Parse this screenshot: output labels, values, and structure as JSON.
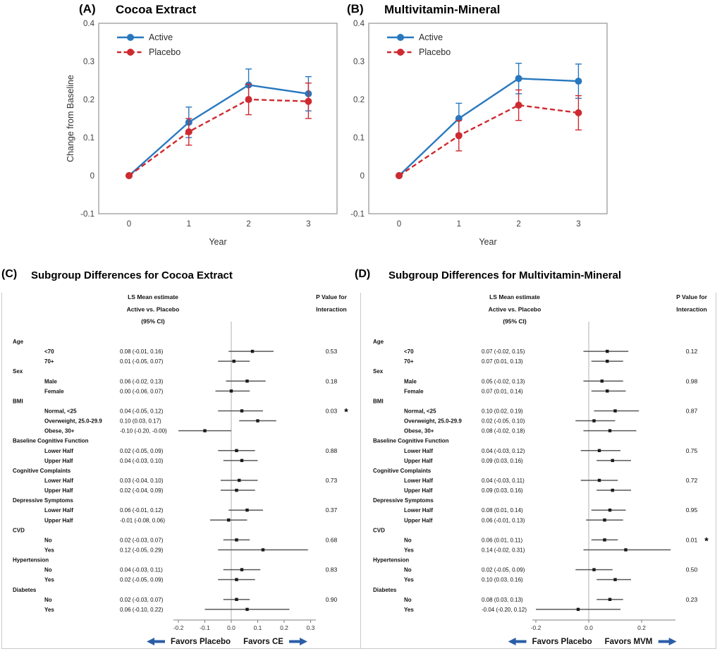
{
  "panels": {
    "A": {
      "tag": "(A)",
      "title": "Cocoa Extract"
    },
    "B": {
      "tag": "(B)",
      "title": "Multivitamin-Mineral"
    },
    "C": {
      "tag": "(C)",
      "title": "Subgroup Differences for Cocoa Extract"
    },
    "D": {
      "tag": "(D)",
      "title": "Subgroup Differences for Multivitamin-Mineral"
    }
  },
  "colors": {
    "active": "#2878BE",
    "placebo": "#CE2A30",
    "arrow": "#2B5DA7",
    "marker": "#1a1a1a",
    "ci_line": "#595959",
    "zero_line": "#C4C4C4",
    "axis": "#7F7F7F",
    "panel_border": "#9C9C9C",
    "tick_text": "#3f3f3f"
  },
  "chart_data": [
    {
      "type": "line",
      "panel": "A",
      "title": "Cocoa Extract",
      "xlabel": "Year",
      "ylabel": "Change from Baseline",
      "x": [
        0,
        1,
        2,
        3
      ],
      "xtick_labels": [
        "0",
        "1",
        "2",
        "3"
      ],
      "ylim": [
        -0.1,
        0.4
      ],
      "yticks": [
        {
          "v": 0.4,
          "label": "0.4"
        },
        {
          "v": 0.3,
          "label": "0.3"
        },
        {
          "v": 0.2,
          "label": "0.2"
        },
        {
          "v": 0.1,
          "label": "0.1"
        },
        {
          "v": 0,
          "label": "0"
        },
        {
          "v": -0.1,
          "label": "-0.1"
        }
      ],
      "legend_position": "top-left",
      "series": [
        {
          "name": "Active",
          "color_key": "active",
          "style": "solid",
          "values": [
            0,
            0.14,
            0.238,
            0.215
          ],
          "ci_lo": [
            null,
            0.1,
            0.195,
            0.17
          ],
          "ci_hi": [
            null,
            0.18,
            0.28,
            0.26
          ]
        },
        {
          "name": "Placebo",
          "color_key": "placebo",
          "style": "dashed",
          "values": [
            0,
            0.115,
            0.2,
            0.195
          ],
          "ci_lo": [
            null,
            0.08,
            0.16,
            0.15
          ],
          "ci_hi": [
            null,
            0.15,
            0.24,
            0.243
          ]
        }
      ]
    },
    {
      "type": "line",
      "panel": "B",
      "title": "Multivitamin-Mineral",
      "xlabel": "Year",
      "ylabel": "",
      "x": [
        0,
        1,
        2,
        3
      ],
      "xtick_labels": [
        "0",
        "1",
        "2",
        "3"
      ],
      "ylim": [
        -0.1,
        0.4
      ],
      "yticks": [
        {
          "v": 0.4,
          "label": "0.4"
        },
        {
          "v": 0.3,
          "label": "0.3"
        },
        {
          "v": 0.2,
          "label": "0.2"
        },
        {
          "v": 0.1,
          "label": "0.1"
        },
        {
          "v": 0,
          "label": "0"
        },
        {
          "v": -0.1,
          "label": "-0.1"
        }
      ],
      "legend_position": "top-left",
      "series": [
        {
          "name": "Active",
          "color_key": "active",
          "style": "solid",
          "values": [
            0,
            0.15,
            0.255,
            0.248
          ],
          "ci_lo": [
            null,
            0.11,
            0.215,
            0.203
          ],
          "ci_hi": [
            null,
            0.19,
            0.295,
            0.293
          ]
        },
        {
          "name": "Placebo",
          "color_key": "placebo",
          "style": "dashed",
          "values": [
            0,
            0.105,
            0.185,
            0.165
          ],
          "ci_lo": [
            null,
            0.065,
            0.145,
            0.12
          ],
          "ci_hi": [
            null,
            0.145,
            0.225,
            0.21
          ]
        }
      ]
    },
    {
      "type": "forest",
      "panel": "C",
      "title": "Subgroup Differences for Cocoa Extract",
      "col_headers": {
        "estimate": [
          "LS Mean estimate",
          "Active vs. Placebo",
          "(95% CI)"
        ],
        "pvalue": [
          "P Value for",
          "Interaction"
        ]
      },
      "axis_ticks": [
        {
          "v": -0.2,
          "label": "-0.2"
        },
        {
          "v": -0.1,
          "label": "-0.1"
        },
        {
          "v": 0.0,
          "label": "0.0"
        },
        {
          "v": 0.1,
          "label": "0.1"
        },
        {
          "v": 0.2,
          "label": "0.2"
        },
        {
          "v": 0.3,
          "label": "0.3"
        }
      ],
      "favors_left": "Favors Placebo",
      "favors_right": "Favors CE",
      "groups": [
        {
          "label": "Age",
          "p": "0.53",
          "star": false,
          "items": [
            {
              "label": "<70",
              "text": "0.08 (-0.01, 0.16)",
              "est": 0.08,
              "lo": -0.01,
              "hi": 0.16
            },
            {
              "label": "70+",
              "text": "0.01 (-0.05, 0.07)",
              "est": 0.01,
              "lo": -0.05,
              "hi": 0.07
            }
          ]
        },
        {
          "label": "Sex",
          "p": "0.18",
          "star": false,
          "items": [
            {
              "label": "Male",
              "text": "0.06 (-0.02, 0.13)",
              "est": 0.06,
              "lo": -0.02,
              "hi": 0.13
            },
            {
              "label": "Female",
              "text": "0.00 (-0.06, 0.07)",
              "est": 0.0,
              "lo": -0.06,
              "hi": 0.07
            }
          ]
        },
        {
          "label": "BMI",
          "p": "0.03",
          "star": true,
          "items": [
            {
              "label": "Normal, <25",
              "text": "0.04 (-0.05, 0.12)",
              "est": 0.04,
              "lo": -0.05,
              "hi": 0.12
            },
            {
              "label": "Overweight, 25.0-29.9",
              "text": "0.10 (0.03, 0.17)",
              "est": 0.1,
              "lo": 0.03,
              "hi": 0.17
            },
            {
              "label": "Obese, 30+",
              "text": "-0.10 (-0.20, -0.00)",
              "est": -0.1,
              "lo": -0.2,
              "hi": 0.0
            }
          ]
        },
        {
          "label": "Baseline Cognitive Function",
          "p": "0.88",
          "star": false,
          "items": [
            {
              "label": "Lower Half",
              "text": "0.02 (-0.05, 0.09)",
              "est": 0.02,
              "lo": -0.05,
              "hi": 0.09
            },
            {
              "label": "Upper Half",
              "text": "0.04 (-0.03, 0.10)",
              "est": 0.04,
              "lo": -0.03,
              "hi": 0.1
            }
          ]
        },
        {
          "label": "Cognitive Complaints",
          "p": "0.73",
          "star": false,
          "items": [
            {
              "label": "Lower Half",
              "text": "0.03 (-0.04, 0.10)",
              "est": 0.03,
              "lo": -0.04,
              "hi": 0.1
            },
            {
              "label": "Upper Half",
              "text": "0.02 (-0.04, 0.09)",
              "est": 0.02,
              "lo": -0.04,
              "hi": 0.09
            }
          ]
        },
        {
          "label": "Depressive Symptoms",
          "p": "0.37",
          "star": false,
          "items": [
            {
              "label": "Lower Half",
              "text": "0.06 (-0.01, 0.12)",
              "est": 0.06,
              "lo": -0.01,
              "hi": 0.12
            },
            {
              "label": "Upper Half",
              "text": "-0.01 (-0.08, 0.06)",
              "est": -0.01,
              "lo": -0.08,
              "hi": 0.06
            }
          ]
        },
        {
          "label": "CVD",
          "p": "0.68",
          "star": false,
          "items": [
            {
              "label": "No",
              "text": "0.02 (-0.03, 0.07)",
              "est": 0.02,
              "lo": -0.03,
              "hi": 0.07
            },
            {
              "label": "Yes",
              "text": "0.12 (-0.05, 0.29)",
              "est": 0.12,
              "lo": -0.05,
              "hi": 0.29
            }
          ]
        },
        {
          "label": "Hypertension",
          "p": "0.83",
          "star": false,
          "items": [
            {
              "label": "No",
              "text": "0.04 (-0.03, 0.11)",
              "est": 0.04,
              "lo": -0.03,
              "hi": 0.11
            },
            {
              "label": "Yes",
              "text": "0.02 (-0.05, 0.09)",
              "est": 0.02,
              "lo": -0.05,
              "hi": 0.09
            }
          ]
        },
        {
          "label": "Diabetes",
          "p": "0.90",
          "star": false,
          "items": [
            {
              "label": "No",
              "text": "0.02 (-0.03, 0.07)",
              "est": 0.02,
              "lo": -0.03,
              "hi": 0.07
            },
            {
              "label": "Yes",
              "text": "0.06 (-0.10, 0.22)",
              "est": 0.06,
              "lo": -0.1,
              "hi": 0.22
            }
          ]
        }
      ]
    },
    {
      "type": "forest",
      "panel": "D",
      "title": "Subgroup Differences for Multivitamin-Mineral",
      "col_headers": {
        "estimate": [
          "LS Mean estimate",
          "Active vs. Placebo",
          "(95% CI)"
        ],
        "pvalue": [
          "P Value for",
          "Interaction"
        ]
      },
      "axis_ticks": [
        {
          "v": -0.2,
          "label": "-0.2"
        },
        {
          "v": 0.0,
          "label": "0.0"
        },
        {
          "v": 0.2,
          "label": "0.2"
        }
      ],
      "favors_left": "Favors Placebo",
      "favors_right": "Favors MVM",
      "groups": [
        {
          "label": "Age",
          "p": "0.12",
          "star": false,
          "items": [
            {
              "label": "<70",
              "text": "0.07 (-0.02, 0.15)",
              "est": 0.07,
              "lo": -0.02,
              "hi": 0.15
            },
            {
              "label": "70+",
              "text": "0.07 (0.01, 0.13)",
              "est": 0.07,
              "lo": 0.01,
              "hi": 0.13
            }
          ]
        },
        {
          "label": "Sex",
          "p": "0.98",
          "star": false,
          "items": [
            {
              "label": "Male",
              "text": "0.05 (-0.02, 0.13)",
              "est": 0.05,
              "lo": -0.02,
              "hi": 0.13
            },
            {
              "label": "Female",
              "text": "0.07 (0.01, 0.14)",
              "est": 0.07,
              "lo": 0.01,
              "hi": 0.14
            }
          ]
        },
        {
          "label": "BMI",
          "p": "0.87",
          "star": false,
          "items": [
            {
              "label": "Normal, <25",
              "text": "0.10 (0.02, 0.19)",
              "est": 0.1,
              "lo": 0.02,
              "hi": 0.19
            },
            {
              "label": "Overweight, 25.0-29.9",
              "text": "0.02 (-0.05, 0.10)",
              "est": 0.02,
              "lo": -0.05,
              "hi": 0.1
            },
            {
              "label": "Obese, 30+",
              "text": "0.08 (-0.02, 0.18)",
              "est": 0.08,
              "lo": -0.02,
              "hi": 0.18
            }
          ]
        },
        {
          "label": "Baseline Cognitive Function",
          "p": "0.75",
          "star": false,
          "items": [
            {
              "label": "Lower Half",
              "text": "0.04 (-0.03, 0.12)",
              "est": 0.04,
              "lo": -0.03,
              "hi": 0.12
            },
            {
              "label": "Upper Half",
              "text": "0.09 (0.03, 0.16)",
              "est": 0.09,
              "lo": 0.03,
              "hi": 0.16
            }
          ]
        },
        {
          "label": "Cognitive Complaints",
          "p": "0.72",
          "star": false,
          "items": [
            {
              "label": "Lower Half",
              "text": "0.04 (-0.03, 0.11)",
              "est": 0.04,
              "lo": -0.03,
              "hi": 0.11
            },
            {
              "label": "Upper Half",
              "text": "0.09 (0.03, 0.16)",
              "est": 0.09,
              "lo": 0.03,
              "hi": 0.16
            }
          ]
        },
        {
          "label": "Depressive Symptoms",
          "p": "0.95",
          "star": false,
          "items": [
            {
              "label": "Lower Half",
              "text": "0.08 (0.01, 0.14)",
              "est": 0.08,
              "lo": 0.01,
              "hi": 0.14
            },
            {
              "label": "Upper Half",
              "text": "0.06 (-0.01, 0.13)",
              "est": 0.06,
              "lo": -0.01,
              "hi": 0.13
            }
          ]
        },
        {
          "label": "CVD",
          "p": "0.01",
          "star": true,
          "items": [
            {
              "label": "No",
              "text": "0.06 (0.01, 0.11)",
              "est": 0.06,
              "lo": 0.01,
              "hi": 0.11
            },
            {
              "label": "Yes",
              "text": "0.14 (-0.02, 0.31)",
              "est": 0.14,
              "lo": -0.02,
              "hi": 0.31
            }
          ]
        },
        {
          "label": "Hypertension",
          "p": "0.50",
          "star": false,
          "items": [
            {
              "label": "No",
              "text": "0.02 (-0.05, 0.09)",
              "est": 0.02,
              "lo": -0.05,
              "hi": 0.09
            },
            {
              "label": "Yes",
              "text": "0.10 (0.03, 0.16)",
              "est": 0.1,
              "lo": 0.03,
              "hi": 0.16
            }
          ]
        },
        {
          "label": "Diabetes",
          "p": "0.23",
          "star": false,
          "items": [
            {
              "label": "No",
              "text": "0.08 (0.03, 0.13)",
              "est": 0.08,
              "lo": 0.03,
              "hi": 0.13
            },
            {
              "label": "Yes",
              "text": "-0.04 (-0.20, 0.12)",
              "est": -0.04,
              "lo": -0.2,
              "hi": 0.12
            }
          ]
        }
      ]
    }
  ]
}
